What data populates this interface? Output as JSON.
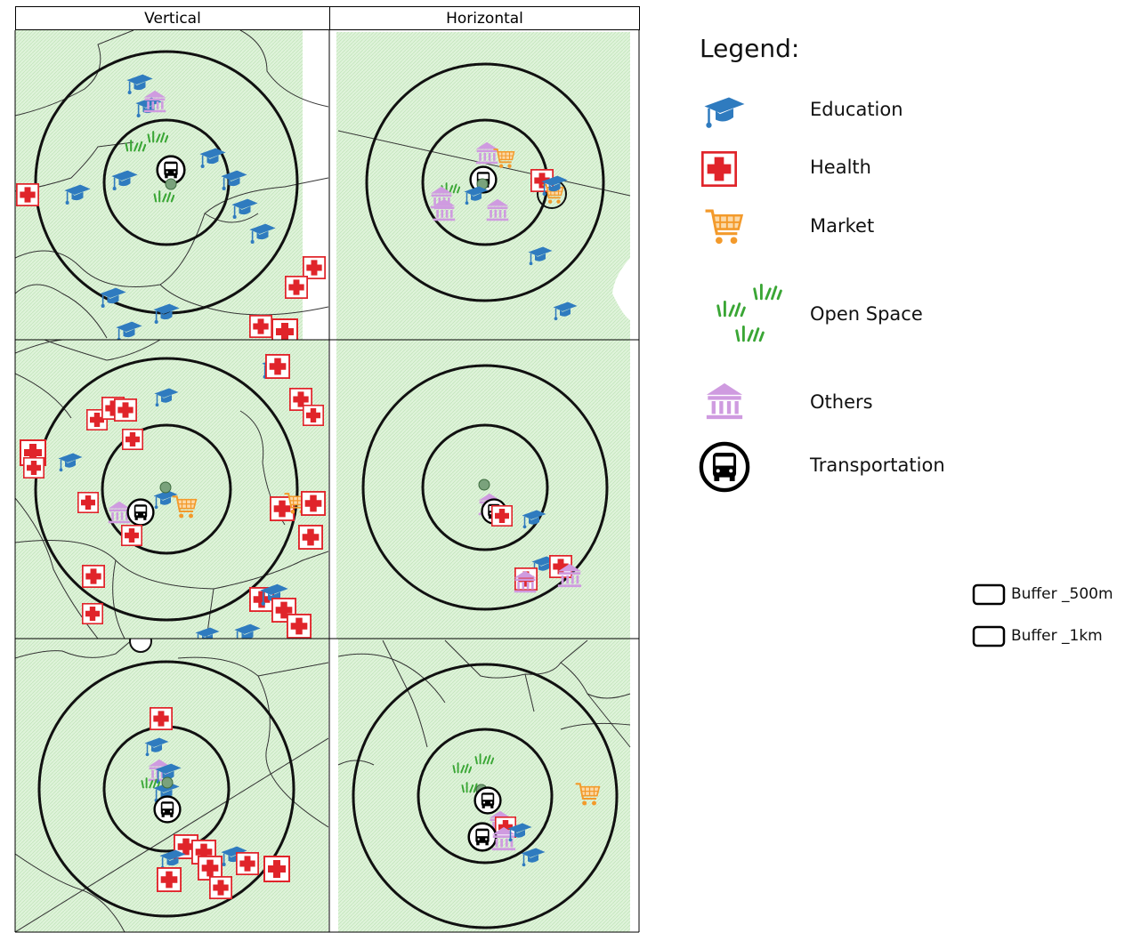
{
  "columns": [
    "Vertical",
    "Horizontal"
  ],
  "legend": {
    "title": "Legend:",
    "items": [
      {
        "label": "Education",
        "icon": "mortarboard-icon",
        "color": "#2f7bbf"
      },
      {
        "label": "Health",
        "icon": "red-cross-icon",
        "color": "#e0242a"
      },
      {
        "label": "Market",
        "icon": "shopping-cart-icon",
        "color": "#f39a2b"
      },
      {
        "label": "Open Space",
        "icon": "grass-icon",
        "color": "#3aa635"
      },
      {
        "label": "Others",
        "icon": "institution-building-icon",
        "color": "#cf9be0"
      },
      {
        "label": "Transportation",
        "icon": "bus-icon",
        "color": "#000000"
      }
    ],
    "buffers": [
      {
        "label": "Buffer _500m"
      },
      {
        "label": "Buffer _1km"
      }
    ]
  },
  "colors": {
    "map_fill": "#d6f0d2",
    "buffer_ring": "#111111",
    "boundary": "#333333",
    "centroid": "#7aa27c"
  }
}
